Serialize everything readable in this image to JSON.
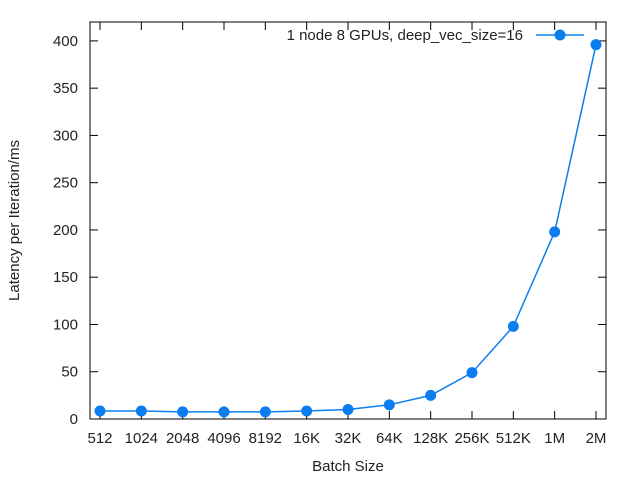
{
  "chart_data": {
    "type": "line",
    "title": "",
    "xlabel": "Batch Size",
    "ylabel": "Latency per Iteration/ms",
    "categories": [
      "512",
      "1024",
      "2048",
      "4096",
      "8192",
      "16K",
      "32K",
      "64K",
      "128K",
      "256K",
      "512K",
      "1M",
      "2M"
    ],
    "ylim": [
      0,
      420
    ],
    "yticks": [
      0,
      50,
      100,
      150,
      200,
      250,
      300,
      350,
      400
    ],
    "grid": false,
    "legend_position": "top-right",
    "colors": {
      "series": "#0a7ef0",
      "axis": "#000000",
      "text": "#222222"
    },
    "series": [
      {
        "name": "1 node 8 GPUs, deep_vec_size=16",
        "marker": "circle",
        "values": [
          8.5,
          8.5,
          7.5,
          7.5,
          7.5,
          8.5,
          10,
          15,
          25,
          49,
          98,
          198,
          396
        ]
      }
    ]
  }
}
